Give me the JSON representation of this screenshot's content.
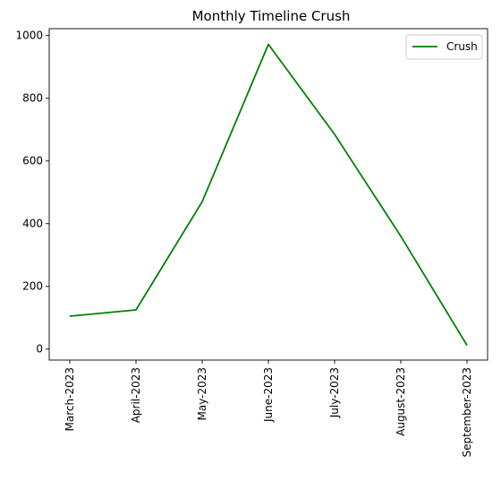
{
  "chart_data": {
    "type": "line",
    "title": "Monthly Timeline Crush",
    "xlabel": "",
    "ylabel": "",
    "categories": [
      "March-2023",
      "April-2023",
      "May-2023",
      "June-2023",
      "July-2023",
      "August-2023",
      "September-2023"
    ],
    "series": [
      {
        "name": "Crush",
        "values": [
          105,
          125,
          470,
          972,
          685,
          360,
          12
        ],
        "color": "#008000"
      }
    ],
    "ylim": [
      -35,
      1022
    ],
    "yticks": [
      0,
      200,
      400,
      600,
      800,
      1000
    ],
    "grid": false,
    "legend": {
      "placement": "top-right",
      "entries": [
        "Crush"
      ]
    }
  }
}
